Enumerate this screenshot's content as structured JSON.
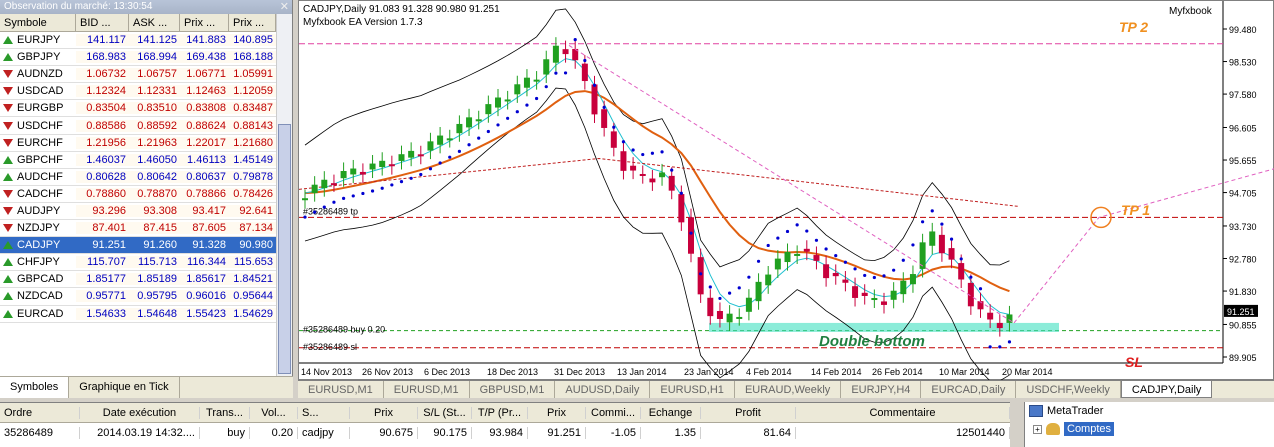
{
  "market_watch": {
    "title": "Observation du marché: 13:30:54",
    "headers": [
      "Symbole",
      "BID ...",
      "ASK ...",
      "Prix ...",
      "Prix ..."
    ],
    "rows": [
      {
        "symbol": "EURJPY",
        "bid": "141.117",
        "ask": "141.125",
        "high": "141.883",
        "low": "140.895",
        "dir": "up"
      },
      {
        "symbol": "GBPJPY",
        "bid": "168.983",
        "ask": "168.994",
        "high": "169.438",
        "low": "168.188",
        "dir": "up"
      },
      {
        "symbol": "AUDNZD",
        "bid": "1.06732",
        "ask": "1.06757",
        "high": "1.06771",
        "low": "1.05991",
        "dir": "down"
      },
      {
        "symbol": "USDCAD",
        "bid": "1.12324",
        "ask": "1.12331",
        "high": "1.12463",
        "low": "1.12059",
        "dir": "down"
      },
      {
        "symbol": "EURGBP",
        "bid": "0.83504",
        "ask": "0.83510",
        "high": "0.83808",
        "low": "0.83487",
        "dir": "down"
      },
      {
        "symbol": "USDCHF",
        "bid": "0.88586",
        "ask": "0.88592",
        "high": "0.88624",
        "low": "0.88143",
        "dir": "down"
      },
      {
        "symbol": "EURCHF",
        "bid": "1.21956",
        "ask": "1.21963",
        "high": "1.22017",
        "low": "1.21680",
        "dir": "down"
      },
      {
        "symbol": "GBPCHF",
        "bid": "1.46037",
        "ask": "1.46050",
        "high": "1.46113",
        "low": "1.45149",
        "dir": "up"
      },
      {
        "symbol": "AUDCHF",
        "bid": "0.80628",
        "ask": "0.80642",
        "high": "0.80637",
        "low": "0.79878",
        "dir": "up"
      },
      {
        "symbol": "CADCHF",
        "bid": "0.78860",
        "ask": "0.78870",
        "high": "0.78866",
        "low": "0.78426",
        "dir": "down"
      },
      {
        "symbol": "AUDJPY",
        "bid": "93.296",
        "ask": "93.308",
        "high": "93.417",
        "low": "92.641",
        "dir": "down"
      },
      {
        "symbol": "NZDJPY",
        "bid": "87.401",
        "ask": "87.415",
        "high": "87.605",
        "low": "87.134",
        "dir": "down"
      },
      {
        "symbol": "CADJPY",
        "bid": "91.251",
        "ask": "91.260",
        "high": "91.328",
        "low": "90.980",
        "dir": "up",
        "selected": true
      },
      {
        "symbol": "CHFJPY",
        "bid": "115.707",
        "ask": "115.713",
        "high": "116.344",
        "low": "115.653",
        "dir": "up"
      },
      {
        "symbol": "GBPCAD",
        "bid": "1.85177",
        "ask": "1.85189",
        "high": "1.85617",
        "low": "1.84521",
        "dir": "up"
      },
      {
        "symbol": "NZDCAD",
        "bid": "0.95771",
        "ask": "0.95795",
        "high": "0.96016",
        "low": "0.95644",
        "dir": "up"
      },
      {
        "symbol": "EURCAD",
        "bid": "1.54633",
        "ask": "1.54648",
        "high": "1.55423",
        "low": "1.54629",
        "dir": "up"
      }
    ],
    "tabs": [
      "Symboles",
      "Graphique en Tick"
    ]
  },
  "chart": {
    "title": "CADJPY,Daily  91.083 91.328 90.980 91.251",
    "subtitle": "Myfxbook EA Version 1.7.3",
    "brand": "Myfxbook",
    "price_labels": [
      "99.480",
      "98.530",
      "97.580",
      "96.605",
      "95.655",
      "94.705",
      "93.730",
      "92.780",
      "91.830",
      "90.855",
      "89.905"
    ],
    "current_price": "91.251",
    "date_labels": [
      "14 Nov 2013",
      "26 Nov 2013",
      "6 Dec 2013",
      "18 Dec 2013",
      "31 Dec 2013",
      "13 Jan 2014",
      "23 Jan 2014",
      "4 Feb 2014",
      "14 Feb 2014",
      "26 Feb 2014",
      "10 Mar 2014",
      "20 Mar 2014"
    ],
    "line_labels": {
      "tp": "#35286489 tp",
      "buy": "#35286489 buy 0.20",
      "sl": "#35286489 sl"
    },
    "annotations": {
      "tp2": "TP 2",
      "tp1": "TP 1",
      "sl": "SL",
      "pattern": "Double bottom"
    },
    "colors": {
      "bull": "#20a020",
      "bear": "#c8003c",
      "ema": "#e06010",
      "sma": "#c02020",
      "bb": "#000000",
      "psar": "#0000d0",
      "fast": "#20c0d0"
    }
  },
  "chart_tabs": [
    "EURUSD,M1",
    "EURUSD,M1",
    "GBPUSD,M1",
    "AUDUSD,Daily",
    "EURUSD,H1",
    "EURAUD,Weekly",
    "EURJPY,H4",
    "EURCAD,Daily",
    "USDCHF,Weekly",
    "CADJPY,Daily"
  ],
  "terminal": {
    "headers": [
      "Ordre",
      "Date exécution",
      "Trans...",
      "Vol...",
      "S...",
      "Prix",
      "S/L (St...",
      "T/P (Pr...",
      "Prix",
      "Commi...",
      "Echange",
      "Profit",
      "Commentaire"
    ],
    "row": [
      "35286489",
      "2014.03.19 14:32....",
      "buy",
      "0.20",
      "cadjpy",
      "90.675",
      "90.175",
      "93.984",
      "91.251",
      "-1.05",
      "1.35",
      "81.64",
      "12501440"
    ]
  },
  "navigator": {
    "root": "MetaTrader",
    "accounts": "Comptes"
  }
}
